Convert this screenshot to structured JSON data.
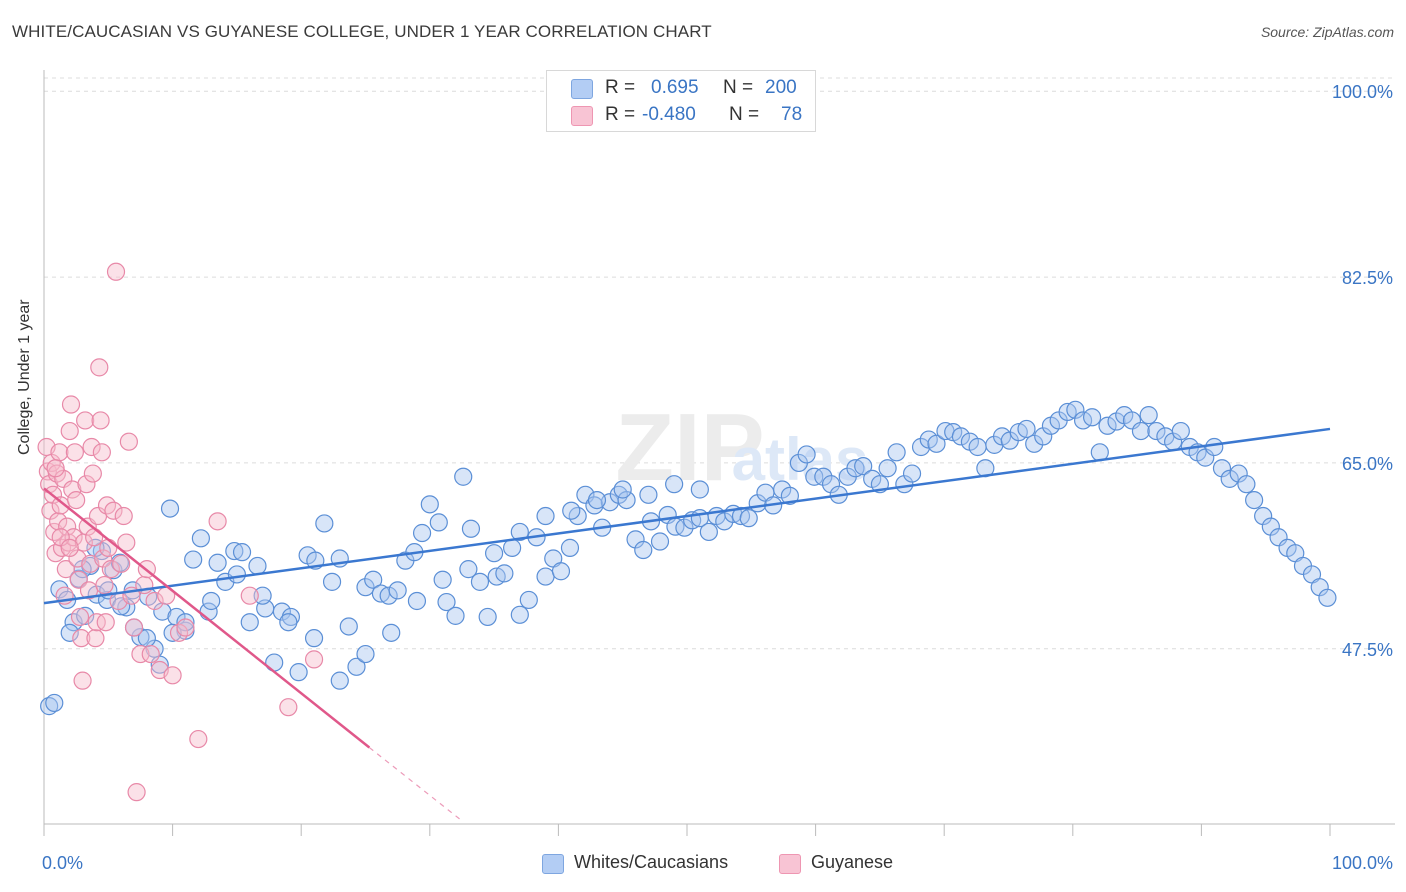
{
  "title": "WHITE/CAUCASIAN VS GUYANESE COLLEGE, UNDER 1 YEAR CORRELATION CHART",
  "source": "Source: ZipAtlas.com",
  "legend_top": {
    "rows": [
      {
        "r_label": "R =",
        "r_value": "0.695",
        "n_label": "N =",
        "n_value": "200"
      },
      {
        "r_label": "R =",
        "r_value": "-0.480",
        "n_label": "N =",
        "n_value": "78"
      }
    ]
  },
  "legend_bottom": {
    "items": [
      {
        "label": "Whites/Caucasians"
      },
      {
        "label": "Guyanese"
      }
    ]
  },
  "colors": {
    "blue_fill": "#a9c6f0",
    "blue_stroke": "#5b8fd6",
    "blue_line": "#3b78d0",
    "pink_fill": "#f7bccd",
    "pink_stroke": "#e889a8",
    "pink_line": "#e0588a",
    "axis_text": "#3a75c4",
    "grid": "#dcdcdc"
  },
  "chart_data": {
    "type": "scatter",
    "title": "WHITE/CAUCASIAN VS GUYANESE COLLEGE, UNDER 1 YEAR CORRELATION CHART",
    "xlabel": "",
    "ylabel": "College, Under 1 year",
    "xlim": [
      0,
      100
    ],
    "ylim": [
      31,
      102
    ],
    "x_tick_labels": [
      "0.0%",
      "100.0%"
    ],
    "y_ticks": [
      47.5,
      65.0,
      82.5,
      100.0
    ],
    "y_tick_labels": [
      "47.5%",
      "65.0%",
      "82.5%",
      "100.0%"
    ],
    "watermark": "ZIPatlas",
    "series": [
      {
        "name": "Whites/Caucasians",
        "R": 0.695,
        "N": 200,
        "trend": {
          "x": [
            0,
            100
          ],
          "y": [
            51.8,
            68.2
          ]
        },
        "points": [
          [
            0.4,
            42.1
          ],
          [
            0.8,
            42.4
          ],
          [
            1.2,
            53.1
          ],
          [
            1.8,
            52.1
          ],
          [
            2.3,
            50.0
          ],
          [
            2.7,
            54.1
          ],
          [
            3.2,
            50.6
          ],
          [
            3.6,
            55.3
          ],
          [
            4.1,
            52.6
          ],
          [
            4.5,
            56.7
          ],
          [
            4.9,
            52.1
          ],
          [
            5.4,
            54.9
          ],
          [
            5.9,
            55.6
          ],
          [
            6.4,
            51.4
          ],
          [
            6.9,
            53.0
          ],
          [
            7.5,
            48.6
          ],
          [
            8.1,
            52.4
          ],
          [
            8.6,
            47.5
          ],
          [
            9.2,
            51.0
          ],
          [
            9.8,
            60.7
          ],
          [
            10.3,
            50.5
          ],
          [
            11.0,
            49.2
          ],
          [
            11.6,
            55.9
          ],
          [
            12.2,
            57.9
          ],
          [
            12.8,
            51.0
          ],
          [
            13.5,
            55.6
          ],
          [
            14.1,
            53.8
          ],
          [
            14.8,
            56.7
          ],
          [
            15.4,
            56.6
          ],
          [
            16.0,
            50.0
          ],
          [
            16.6,
            55.3
          ],
          [
            17.2,
            51.3
          ],
          [
            17.9,
            46.2
          ],
          [
            18.5,
            51.0
          ],
          [
            19.2,
            50.5
          ],
          [
            19.8,
            45.3
          ],
          [
            20.5,
            56.3
          ],
          [
            21.1,
            55.8
          ],
          [
            21.8,
            59.3
          ],
          [
            22.4,
            53.8
          ],
          [
            23.0,
            56.0
          ],
          [
            23.7,
            49.6
          ],
          [
            24.3,
            45.8
          ],
          [
            25.0,
            53.3
          ],
          [
            25.6,
            54.0
          ],
          [
            26.2,
            52.7
          ],
          [
            26.8,
            52.5
          ],
          [
            27.5,
            53.0
          ],
          [
            28.1,
            55.8
          ],
          [
            28.8,
            56.6
          ],
          [
            29.4,
            58.4
          ],
          [
            30.0,
            61.1
          ],
          [
            30.7,
            59.4
          ],
          [
            31.3,
            51.9
          ],
          [
            32.0,
            50.6
          ],
          [
            32.6,
            63.7
          ],
          [
            33.2,
            58.8
          ],
          [
            33.9,
            53.8
          ],
          [
            34.5,
            50.5
          ],
          [
            35.2,
            54.3
          ],
          [
            35.8,
            54.6
          ],
          [
            36.4,
            57.0
          ],
          [
            37.0,
            50.7
          ],
          [
            37.7,
            52.1
          ],
          [
            38.3,
            58.0
          ],
          [
            39.0,
            54.3
          ],
          [
            39.6,
            56.0
          ],
          [
            40.2,
            54.8
          ],
          [
            40.9,
            57.0
          ],
          [
            41.5,
            60.0
          ],
          [
            42.1,
            62.0
          ],
          [
            42.8,
            61.0
          ],
          [
            43.4,
            58.9
          ],
          [
            44.0,
            61.3
          ],
          [
            44.7,
            62.0
          ],
          [
            45.3,
            61.5
          ],
          [
            46.0,
            57.8
          ],
          [
            46.6,
            56.8
          ],
          [
            47.2,
            59.5
          ],
          [
            47.9,
            57.6
          ],
          [
            48.5,
            60.1
          ],
          [
            49.1,
            59.0
          ],
          [
            49.8,
            58.9
          ],
          [
            50.4,
            59.6
          ],
          [
            51.0,
            59.8
          ],
          [
            51.7,
            58.5
          ],
          [
            52.3,
            60.0
          ],
          [
            52.9,
            59.5
          ],
          [
            53.6,
            60.2
          ],
          [
            54.2,
            60.0
          ],
          [
            54.8,
            59.8
          ],
          [
            55.5,
            61.2
          ],
          [
            56.1,
            62.2
          ],
          [
            56.7,
            61.0
          ],
          [
            57.4,
            62.5
          ],
          [
            58.0,
            61.9
          ],
          [
            58.7,
            65.0
          ],
          [
            59.3,
            65.8
          ],
          [
            59.9,
            63.7
          ],
          [
            60.6,
            63.7
          ],
          [
            61.2,
            63.0
          ],
          [
            61.8,
            62.0
          ],
          [
            62.5,
            63.7
          ],
          [
            63.1,
            64.5
          ],
          [
            63.7,
            64.7
          ],
          [
            64.4,
            63.5
          ],
          [
            65.0,
            63.0
          ],
          [
            65.6,
            64.5
          ],
          [
            66.3,
            66.0
          ],
          [
            66.9,
            63.0
          ],
          [
            67.5,
            64.0
          ],
          [
            68.2,
            66.5
          ],
          [
            68.8,
            67.2
          ],
          [
            69.4,
            66.8
          ],
          [
            70.1,
            68.0
          ],
          [
            70.7,
            67.9
          ],
          [
            71.3,
            67.5
          ],
          [
            72.0,
            67.0
          ],
          [
            72.6,
            66.5
          ],
          [
            73.2,
            64.5
          ],
          [
            73.9,
            66.7
          ],
          [
            74.5,
            67.5
          ],
          [
            75.1,
            67.1
          ],
          [
            75.8,
            67.9
          ],
          [
            76.4,
            68.2
          ],
          [
            77.0,
            66.8
          ],
          [
            77.7,
            67.5
          ],
          [
            78.3,
            68.5
          ],
          [
            78.9,
            69.0
          ],
          [
            79.6,
            69.8
          ],
          [
            80.2,
            70.0
          ],
          [
            80.8,
            69.0
          ],
          [
            81.5,
            69.3
          ],
          [
            82.1,
            66.0
          ],
          [
            82.7,
            68.5
          ],
          [
            83.4,
            68.9
          ],
          [
            84.0,
            69.5
          ],
          [
            84.6,
            69.0
          ],
          [
            85.3,
            68.0
          ],
          [
            85.9,
            69.5
          ],
          [
            86.5,
            68.0
          ],
          [
            87.2,
            67.5
          ],
          [
            87.8,
            67.0
          ],
          [
            88.4,
            68.0
          ],
          [
            89.1,
            66.5
          ],
          [
            89.7,
            66.0
          ],
          [
            90.3,
            65.5
          ],
          [
            91.0,
            66.5
          ],
          [
            91.6,
            64.5
          ],
          [
            92.2,
            63.5
          ],
          [
            92.9,
            64.0
          ],
          [
            93.5,
            63.0
          ],
          [
            94.1,
            61.5
          ],
          [
            94.8,
            60.0
          ],
          [
            95.4,
            59.0
          ],
          [
            96.0,
            58.0
          ],
          [
            96.7,
            57.0
          ],
          [
            97.3,
            56.5
          ],
          [
            97.9,
            55.3
          ],
          [
            98.6,
            54.5
          ],
          [
            99.2,
            53.3
          ],
          [
            99.8,
            52.3
          ],
          [
            2.0,
            49.0
          ],
          [
            3.0,
            55.0
          ],
          [
            4.0,
            57.0
          ],
          [
            5.0,
            53.0
          ],
          [
            6.0,
            51.5
          ],
          [
            7.0,
            49.5
          ],
          [
            8.0,
            48.5
          ],
          [
            9.0,
            46.0
          ],
          [
            10.0,
            49.0
          ],
          [
            11.0,
            50.0
          ],
          [
            13.0,
            52.0
          ],
          [
            15.0,
            54.5
          ],
          [
            17.0,
            52.5
          ],
          [
            19.0,
            50.0
          ],
          [
            21.0,
            48.5
          ],
          [
            23.0,
            44.5
          ],
          [
            25.0,
            47.0
          ],
          [
            27.0,
            49.0
          ],
          [
            29.0,
            52.0
          ],
          [
            31.0,
            54.0
          ],
          [
            33.0,
            55.0
          ],
          [
            35.0,
            56.5
          ],
          [
            37.0,
            58.5
          ],
          [
            39.0,
            60.0
          ],
          [
            41.0,
            60.5
          ],
          [
            43.0,
            61.5
          ],
          [
            45.0,
            62.5
          ],
          [
            47.0,
            62.0
          ],
          [
            49.0,
            63.0
          ],
          [
            51.0,
            62.5
          ]
        ]
      },
      {
        "name": "Guyanese",
        "R": -0.48,
        "N": 78,
        "trend": {
          "x": [
            0,
            25.3
          ],
          "y": [
            62.6,
            38.2
          ]
        },
        "trend_dashed": {
          "x": [
            25.3,
            32.5
          ],
          "y": [
            38.2,
            31.3
          ]
        },
        "points": [
          [
            0.2,
            66.5
          ],
          [
            0.3,
            64.2
          ],
          [
            0.4,
            63.0
          ],
          [
            0.5,
            60.5
          ],
          [
            0.6,
            65.0
          ],
          [
            0.7,
            62.0
          ],
          [
            0.8,
            58.5
          ],
          [
            0.9,
            56.5
          ],
          [
            1.0,
            64.0
          ],
          [
            1.1,
            59.5
          ],
          [
            1.2,
            66.0
          ],
          [
            1.3,
            61.0
          ],
          [
            1.4,
            57.0
          ],
          [
            1.5,
            63.5
          ],
          [
            1.6,
            52.5
          ],
          [
            1.7,
            55.0
          ],
          [
            1.8,
            59.0
          ],
          [
            1.9,
            57.5
          ],
          [
            2.0,
            68.0
          ],
          [
            2.1,
            70.5
          ],
          [
            2.2,
            62.5
          ],
          [
            2.3,
            58.0
          ],
          [
            2.4,
            66.0
          ],
          [
            2.5,
            61.5
          ],
          [
            2.6,
            56.0
          ],
          [
            2.7,
            54.0
          ],
          [
            2.8,
            50.5
          ],
          [
            2.9,
            48.5
          ],
          [
            3.0,
            44.5
          ],
          [
            3.1,
            57.5
          ],
          [
            3.2,
            69.0
          ],
          [
            3.3,
            63.0
          ],
          [
            3.4,
            59.0
          ],
          [
            3.5,
            53.0
          ],
          [
            3.6,
            55.5
          ],
          [
            3.7,
            66.5
          ],
          [
            3.8,
            64.0
          ],
          [
            3.9,
            58.0
          ],
          [
            4.0,
            48.5
          ],
          [
            4.1,
            50.0
          ],
          [
            4.2,
            60.0
          ],
          [
            4.3,
            74.0
          ],
          [
            4.4,
            69.0
          ],
          [
            4.5,
            66.0
          ],
          [
            4.6,
            56.0
          ],
          [
            4.7,
            53.5
          ],
          [
            4.8,
            50.0
          ],
          [
            4.9,
            61.0
          ],
          [
            5.0,
            57.0
          ],
          [
            5.2,
            55.0
          ],
          [
            5.4,
            60.5
          ],
          [
            5.6,
            83.0
          ],
          [
            5.8,
            52.0
          ],
          [
            6.0,
            55.5
          ],
          [
            6.2,
            60.0
          ],
          [
            6.4,
            57.5
          ],
          [
            6.6,
            67.0
          ],
          [
            6.8,
            52.5
          ],
          [
            7.0,
            49.5
          ],
          [
            7.2,
            34.0
          ],
          [
            7.5,
            47.0
          ],
          [
            7.8,
            53.5
          ],
          [
            8.0,
            55.0
          ],
          [
            8.3,
            47.0
          ],
          [
            8.6,
            52.0
          ],
          [
            9.0,
            45.5
          ],
          [
            9.5,
            52.5
          ],
          [
            10.0,
            45.0
          ],
          [
            10.5,
            49.0
          ],
          [
            11.0,
            49.5
          ],
          [
            12.0,
            39.0
          ],
          [
            13.5,
            59.5
          ],
          [
            16.0,
            52.5
          ],
          [
            19.0,
            42.0
          ],
          [
            21.0,
            46.5
          ],
          [
            0.9,
            64.5
          ],
          [
            1.3,
            58.0
          ],
          [
            2.0,
            57.0
          ]
        ]
      }
    ]
  }
}
